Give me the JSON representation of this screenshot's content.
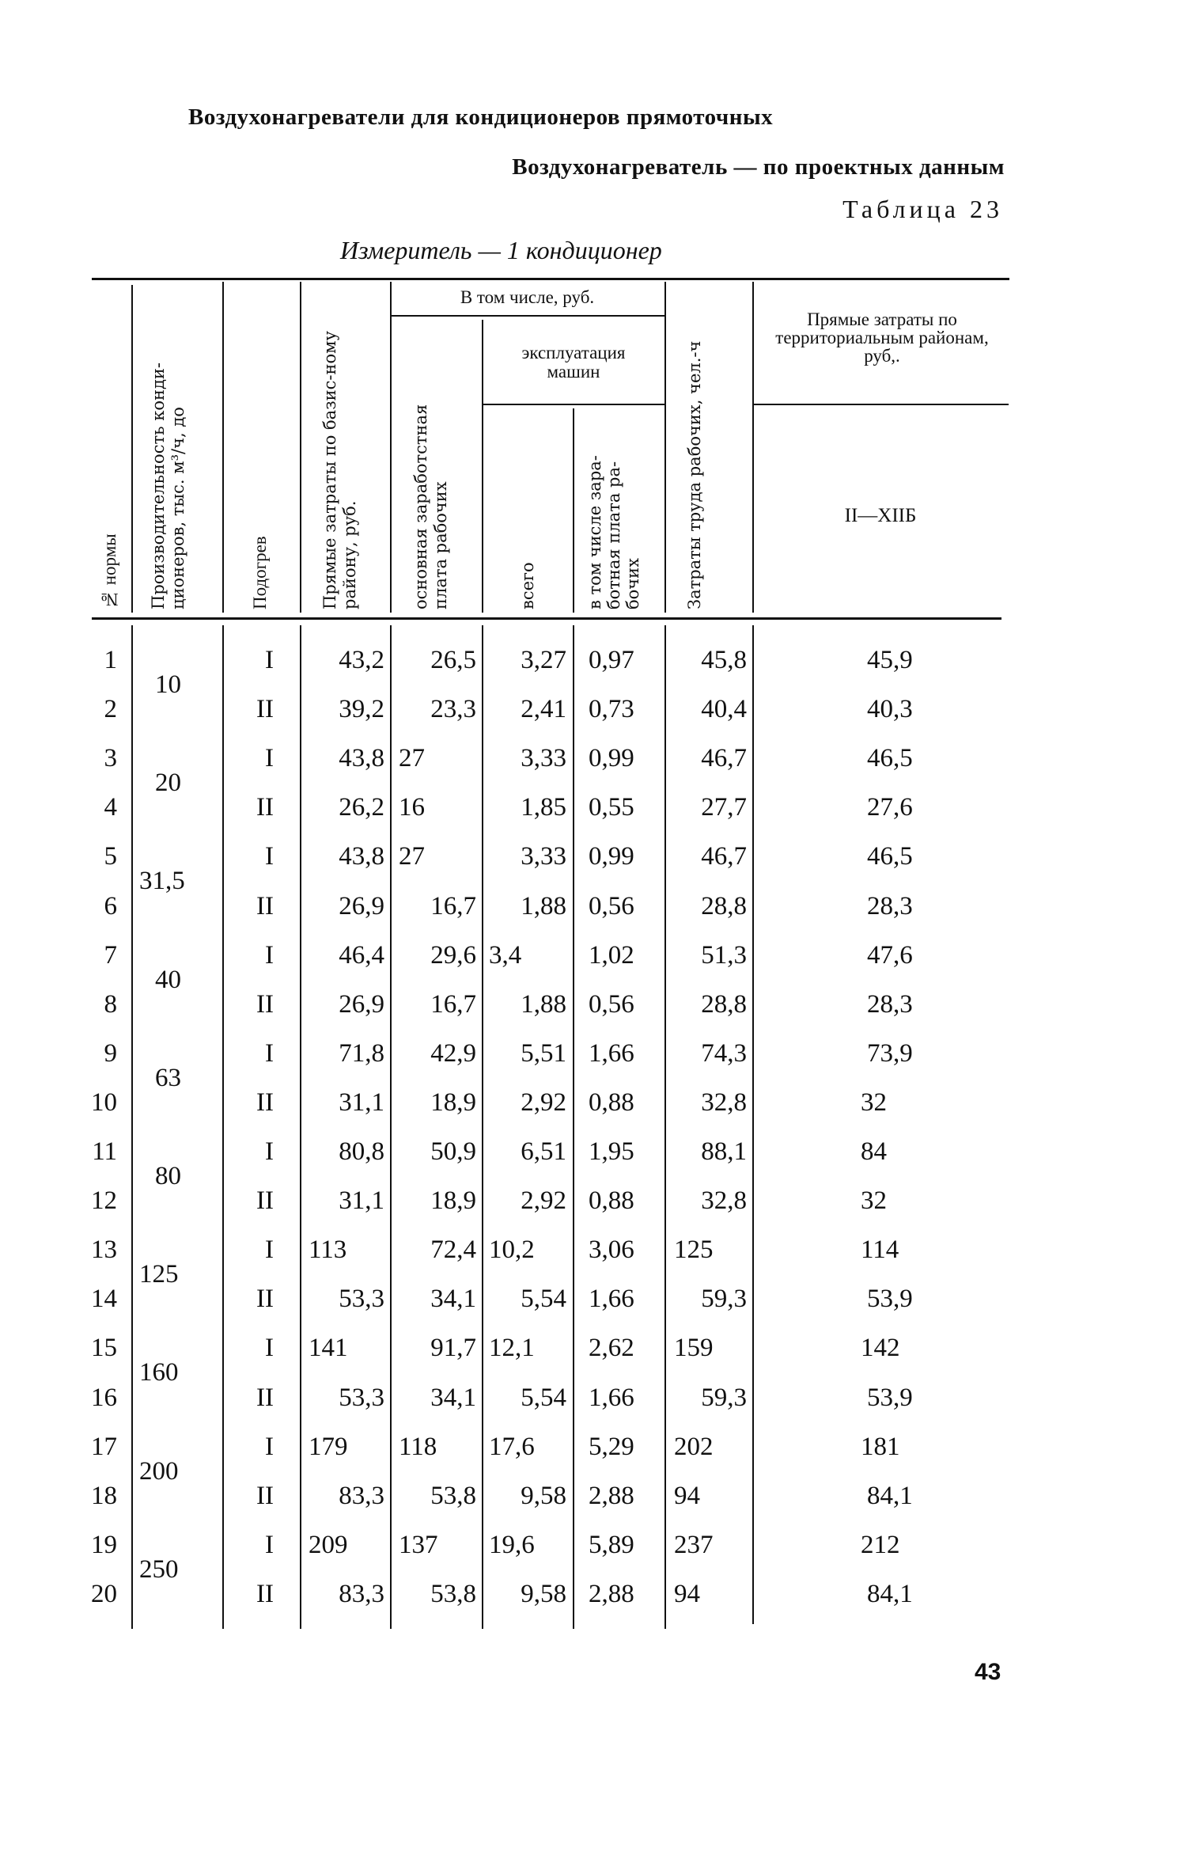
{
  "title": "Воздухонагреватели для кондиционеров прямоточных",
  "subtitle": "Воздухонагреватель — по проектных данным",
  "table_number": "Таблица 23",
  "measure_unit": "Измеритель — 1 кондиционер",
  "headers": {
    "norm_no": "№ нормы",
    "capacity": "Производительность конди-ционеров, тыс. м³/ч, до",
    "heating": "Подогрев",
    "direct_costs_base": "Прямые затраты по базис-ному району, руб.",
    "including": "В том числе, руб.",
    "base_wages": "основная заработстная плата рабочих",
    "machine_operation": "эксплуатация машин",
    "machine_total": "всего",
    "machine_wages": "в том числе зара-ботная плата ра-бочих",
    "labor_costs": "Затраты труда рабочих, чел.-ч",
    "direct_costs_territorial": "Прямые затраты по территориальным районам, руб,.",
    "territory_range": "II—XIIБ"
  },
  "capacity_groups": [
    "10",
    "20",
    "31,5",
    "40",
    "63",
    "80",
    "125",
    "160",
    "200",
    "250"
  ],
  "rows": [
    {
      "no": "1",
      "heating": "I",
      "base": "43,2",
      "wages": "26,5",
      "mach_total": "3,27",
      "mach_wages": "0,97",
      "labor": "45,8",
      "territorial": "45,9"
    },
    {
      "no": "2",
      "heating": "II",
      "base": "39,2",
      "wages": "23,3",
      "mach_total": "2,41",
      "mach_wages": "0,73",
      "labor": "40,4",
      "territorial": "40,3"
    },
    {
      "no": "3",
      "heating": "I",
      "base": "43,8",
      "wages": "27",
      "mach_total": "3,33",
      "mach_wages": "0,99",
      "labor": "46,7",
      "territorial": "46,5"
    },
    {
      "no": "4",
      "heating": "II",
      "base": "26,2",
      "wages": "16",
      "mach_total": "1,85",
      "mach_wages": "0,55",
      "labor": "27,7",
      "territorial": "27,6"
    },
    {
      "no": "5",
      "heating": "I",
      "base": "43,8",
      "wages": "27",
      "mach_total": "3,33",
      "mach_wages": "0,99",
      "labor": "46,7",
      "territorial": "46,5"
    },
    {
      "no": "6",
      "heating": "II",
      "base": "26,9",
      "wages": "16,7",
      "mach_total": "1,88",
      "mach_wages": "0,56",
      "labor": "28,8",
      "territorial": "28,3"
    },
    {
      "no": "7",
      "heating": "I",
      "base": "46,4",
      "wages": "29,6",
      "mach_total": "3,4",
      "mach_wages": "1,02",
      "labor": "51,3",
      "territorial": "47,6"
    },
    {
      "no": "8",
      "heating": "II",
      "base": "26,9",
      "wages": "16,7",
      "mach_total": "1,88",
      "mach_wages": "0,56",
      "labor": "28,8",
      "territorial": "28,3"
    },
    {
      "no": "9",
      "heating": "I",
      "base": "71,8",
      "wages": "42,9",
      "mach_total": "5,51",
      "mach_wages": "1,66",
      "labor": "74,3",
      "territorial": "73,9"
    },
    {
      "no": "10",
      "heating": "II",
      "base": "31,1",
      "wages": "18,9",
      "mach_total": "2,92",
      "mach_wages": "0,88",
      "labor": "32,8",
      "territorial": "32"
    },
    {
      "no": "11",
      "heating": "I",
      "base": "80,8",
      "wages": "50,9",
      "mach_total": "6,51",
      "mach_wages": "1,95",
      "labor": "88,1",
      "territorial": "84"
    },
    {
      "no": "12",
      "heating": "II",
      "base": "31,1",
      "wages": "18,9",
      "mach_total": "2,92",
      "mach_wages": "0,88",
      "labor": "32,8",
      "territorial": "32"
    },
    {
      "no": "13",
      "heating": "I",
      "base": "113",
      "wages": "72,4",
      "mach_total": "10,2",
      "mach_wages": "3,06",
      "labor": "125",
      "territorial": "114"
    },
    {
      "no": "14",
      "heating": "II",
      "base": "53,3",
      "wages": "34,1",
      "mach_total": "5,54",
      "mach_wages": "1,66",
      "labor": "59,3",
      "territorial": "53,9"
    },
    {
      "no": "15",
      "heating": "I",
      "base": "141",
      "wages": "91,7",
      "mach_total": "12,1",
      "mach_wages": "2,62",
      "labor": "159",
      "territorial": "142"
    },
    {
      "no": "16",
      "heating": "II",
      "base": "53,3",
      "wages": "34,1",
      "mach_total": "5,54",
      "mach_wages": "1,66",
      "labor": "59,3",
      "territorial": "53,9"
    },
    {
      "no": "17",
      "heating": "I",
      "base": "179",
      "wages": "118",
      "mach_total": "17,6",
      "mach_wages": "5,29",
      "labor": "202",
      "territorial": "181"
    },
    {
      "no": "18",
      "heating": "II",
      "base": "83,3",
      "wages": "53,8",
      "mach_total": "9,58",
      "mach_wages": "2,88",
      "labor": "94",
      "territorial": "84,1"
    },
    {
      "no": "19",
      "heating": "I",
      "base": "209",
      "wages": "137",
      "mach_total": "19,6",
      "mach_wages": "5,89",
      "labor": "237",
      "territorial": "212"
    },
    {
      "no": "20",
      "heating": "II",
      "base": "83,3",
      "wages": "53,8",
      "mach_total": "9,58",
      "mach_wages": "2,88",
      "labor": "94",
      "territorial": "84,1"
    }
  ],
  "page_number": "43"
}
